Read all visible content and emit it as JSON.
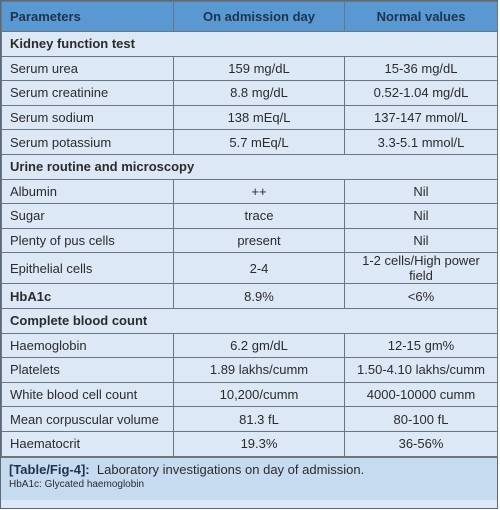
{
  "table": {
    "header": [
      "Parameters",
      "On admission day",
      "Normal values"
    ],
    "rows": [
      [
        "Kidney function test"
      ],
      [
        "Serum urea",
        "159 mg/dL",
        "15-36 mg/dL"
      ],
      [
        "Serum creatinine",
        "8.8 mg/dL",
        "0.52-1.04 mg/dL"
      ],
      [
        "Serum sodium",
        "138 mEq/L",
        "137-147 mmol/L"
      ],
      [
        "Serum potassium",
        "5.7 mEq/L",
        "3.3-5.1 mmol/L"
      ],
      [
        "Urine routine and microscopy"
      ],
      [
        "Albumin",
        "++",
        "Nil"
      ],
      [
        "Sugar",
        "trace",
        "Nil"
      ],
      [
        "Plenty of pus cells",
        "present",
        "Nil"
      ],
      [
        "Epithelial cells",
        "2-4",
        "1-2 cells/High power field"
      ],
      [
        "HbA1c",
        "8.9%",
        "<6%"
      ],
      [
        "Complete blood count"
      ],
      [
        "Haemoglobin",
        "6.2 gm/dL",
        "12-15 gm%"
      ],
      [
        "Platelets",
        "1.89 lakhs/cumm",
        "1.50-4.10 lakhs/cumm"
      ],
      [
        "White blood cell count",
        "10,200/cumm",
        "4000-10000 cumm"
      ],
      [
        "Mean corpuscular volume",
        "81.3 fL",
        "80-100 fL"
      ],
      [
        "Haematocrit",
        "19.3%",
        "36-56%"
      ]
    ]
  },
  "caption": {
    "label": "[Table/Fig-4]:",
    "text": "Laboratory investigations on day of admission.",
    "note": "HbA1c: Glycated haemoglobin"
  }
}
